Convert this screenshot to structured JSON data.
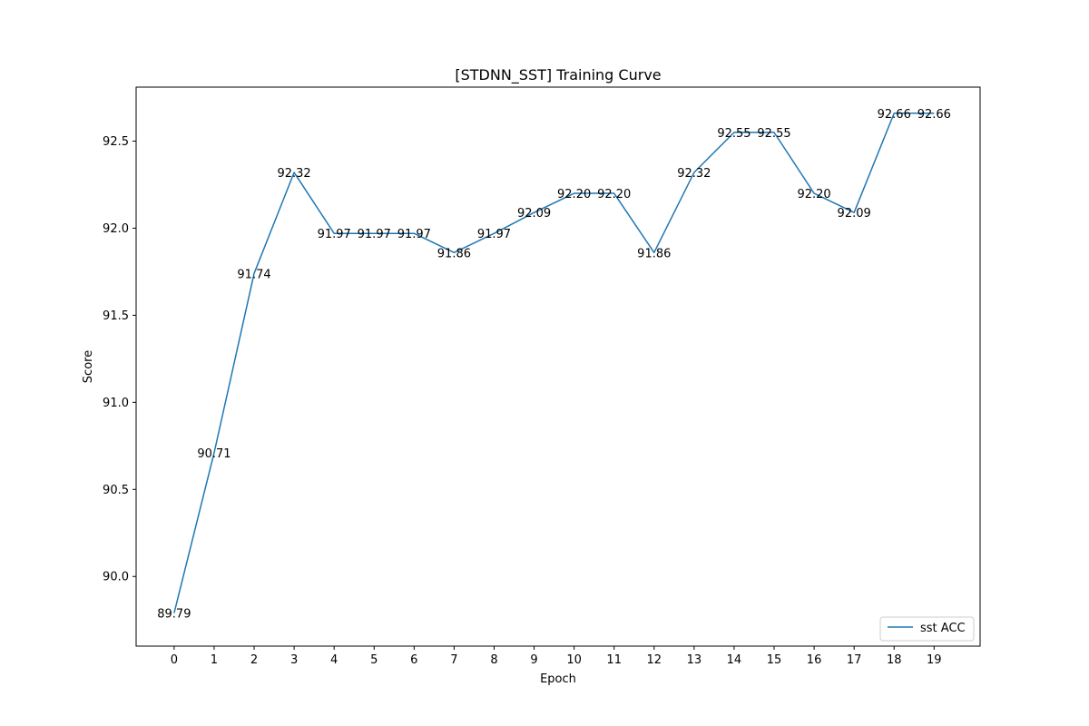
{
  "chart_data": {
    "type": "line",
    "title": "[STDNN_SST] Training Curve",
    "xlabel": "Epoch",
    "ylabel": "Score",
    "x": [
      0,
      1,
      2,
      3,
      4,
      5,
      6,
      7,
      8,
      9,
      10,
      11,
      12,
      13,
      14,
      15,
      16,
      17,
      18,
      19
    ],
    "xlim": [
      -0.95,
      20.15
    ],
    "ylim": [
      89.6,
      92.81
    ],
    "yticks": [
      90.0,
      90.5,
      91.0,
      91.5,
      92.0,
      92.5
    ],
    "ytick_labels": [
      "90.0",
      "90.5",
      "91.0",
      "91.5",
      "92.0",
      "92.5"
    ],
    "grid": false,
    "legend_position": "lower-right",
    "series": [
      {
        "name": "sst ACC",
        "color": "#1f77b4",
        "values": [
          89.79,
          90.71,
          91.74,
          92.32,
          91.97,
          91.97,
          91.97,
          91.86,
          91.97,
          92.09,
          92.2,
          92.2,
          91.86,
          92.32,
          92.55,
          92.55,
          92.2,
          92.09,
          92.66,
          92.66
        ],
        "labels": [
          "89.79",
          "90.71",
          "91.74",
          "92.32",
          "91.97",
          "91.97",
          "91.97",
          "91.86",
          "91.97",
          "92.09",
          "92.20",
          "92.20",
          "91.86",
          "92.32",
          "92.55",
          "92.55",
          "92.20",
          "92.09",
          "92.66",
          "92.66"
        ]
      }
    ]
  }
}
